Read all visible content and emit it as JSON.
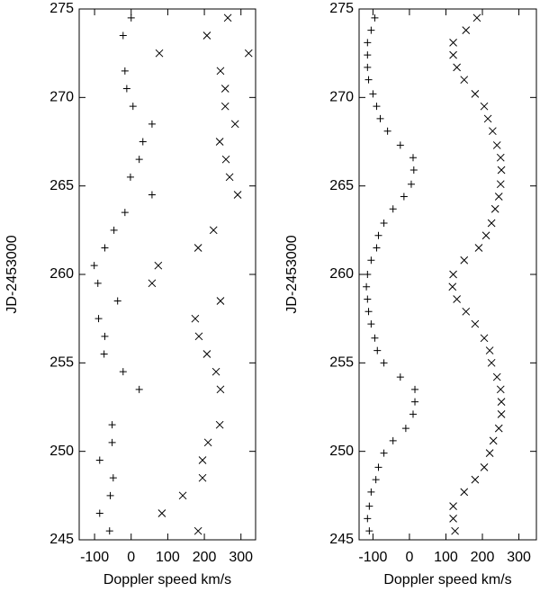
{
  "chart_data": [
    {
      "type": "scatter",
      "xlabel": "Doppler speed km/s",
      "ylabel": "JD-2453000",
      "xlim": [
        -142,
        340
      ],
      "ylim": [
        245,
        275
      ],
      "xticks": [
        -100,
        0,
        100,
        200,
        300
      ],
      "yticks": [
        245,
        250,
        255,
        260,
        265,
        270,
        275
      ],
      "series": [
        {
          "marker": "plus",
          "color": "#000000",
          "x": [
            0,
            -22,
            -17,
            -12,
            5,
            57,
            32,
            22,
            -2,
            57,
            -17,
            -47,
            -72,
            -101,
            -91,
            -37,
            -89,
            -72,
            -74,
            -22,
            22,
            -52,
            -52,
            -86,
            -49,
            -57,
            -86,
            -59
          ],
          "y": [
            274.5,
            273.5,
            271.5,
            270.5,
            269.5,
            268.5,
            267.5,
            266.5,
            265.5,
            264.5,
            263.5,
            262.5,
            261.5,
            260.5,
            259.5,
            258.5,
            257.5,
            256.5,
            255.5,
            254.5,
            253.5,
            251.5,
            250.5,
            249.5,
            248.5,
            247.5,
            246.5,
            245.5
          ]
        },
        {
          "marker": "cross",
          "color": "#000000",
          "x": [
            264,
            207,
            77,
            321,
            244,
            257,
            257,
            284,
            242,
            259,
            269,
            291,
            225,
            183,
            74,
            57,
            244,
            175,
            185,
            207,
            232,
            244,
            242,
            210,
            195,
            195,
            141,
            84,
            183
          ],
          "y": [
            274.5,
            273.5,
            272.5,
            272.5,
            271.5,
            270.5,
            269.5,
            268.5,
            267.5,
            266.5,
            265.5,
            264.5,
            262.5,
            261.5,
            260.5,
            259.5,
            258.5,
            257.5,
            256.5,
            255.5,
            254.5,
            253.5,
            251.5,
            250.5,
            249.5,
            248.5,
            247.5,
            246.5,
            245.5
          ]
        }
      ]
    },
    {
      "type": "scatter",
      "xlabel": "Doppler speed km/s",
      "ylabel": "JD-2453000",
      "xlim": [
        -138,
        348
      ],
      "ylim": [
        245,
        275
      ],
      "xticks": [
        -100,
        0,
        100,
        200,
        300
      ],
      "yticks": [
        245,
        250,
        255,
        260,
        265,
        270,
        275
      ],
      "series": [
        {
          "marker": "plus",
          "color": "#000000",
          "x": [
            -95,
            -105,
            -115,
            -115,
            -115,
            -112,
            -100,
            -90,
            -80,
            -60,
            -25,
            10,
            12,
            5,
            -15,
            -45,
            -70,
            -85,
            -90,
            -105,
            -115,
            -118,
            -115,
            -112,
            -105,
            -95,
            -88,
            -70,
            -25,
            15,
            15,
            10,
            -10,
            -45,
            -70,
            -85,
            -92,
            -105,
            -110,
            -115,
            -110
          ],
          "y": [
            274.5,
            273.8,
            273.1,
            272.4,
            271.7,
            271.0,
            270.2,
            269.5,
            268.8,
            268.1,
            267.3,
            266.6,
            265.9,
            265.1,
            264.4,
            263.7,
            262.9,
            262.2,
            261.5,
            260.8,
            260.0,
            259.3,
            258.6,
            257.9,
            257.2,
            256.4,
            255.7,
            255.0,
            254.2,
            253.5,
            252.8,
            252.1,
            251.3,
            250.6,
            249.9,
            249.1,
            248.4,
            247.7,
            246.9,
            246.2,
            245.5
          ]
        },
        {
          "marker": "cross",
          "color": "#000000",
          "x": [
            185,
            155,
            120,
            120,
            130,
            150,
            180,
            205,
            215,
            228,
            240,
            250,
            252,
            250,
            245,
            235,
            225,
            210,
            190,
            150,
            120,
            118,
            130,
            155,
            180,
            205,
            220,
            225,
            240,
            250,
            252,
            252,
            245,
            230,
            220,
            205,
            180,
            150,
            120,
            120,
            125
          ],
          "y": [
            274.5,
            273.8,
            273.1,
            272.4,
            271.7,
            271.0,
            270.2,
            269.5,
            268.8,
            268.1,
            267.3,
            266.6,
            265.9,
            265.1,
            264.4,
            263.7,
            262.9,
            262.2,
            261.5,
            260.8,
            260.0,
            259.3,
            258.6,
            257.9,
            257.2,
            256.4,
            255.7,
            255.0,
            254.2,
            253.5,
            252.8,
            252.1,
            251.3,
            250.6,
            249.9,
            249.1,
            248.4,
            247.7,
            246.9,
            246.2,
            245.5
          ]
        }
      ]
    }
  ]
}
